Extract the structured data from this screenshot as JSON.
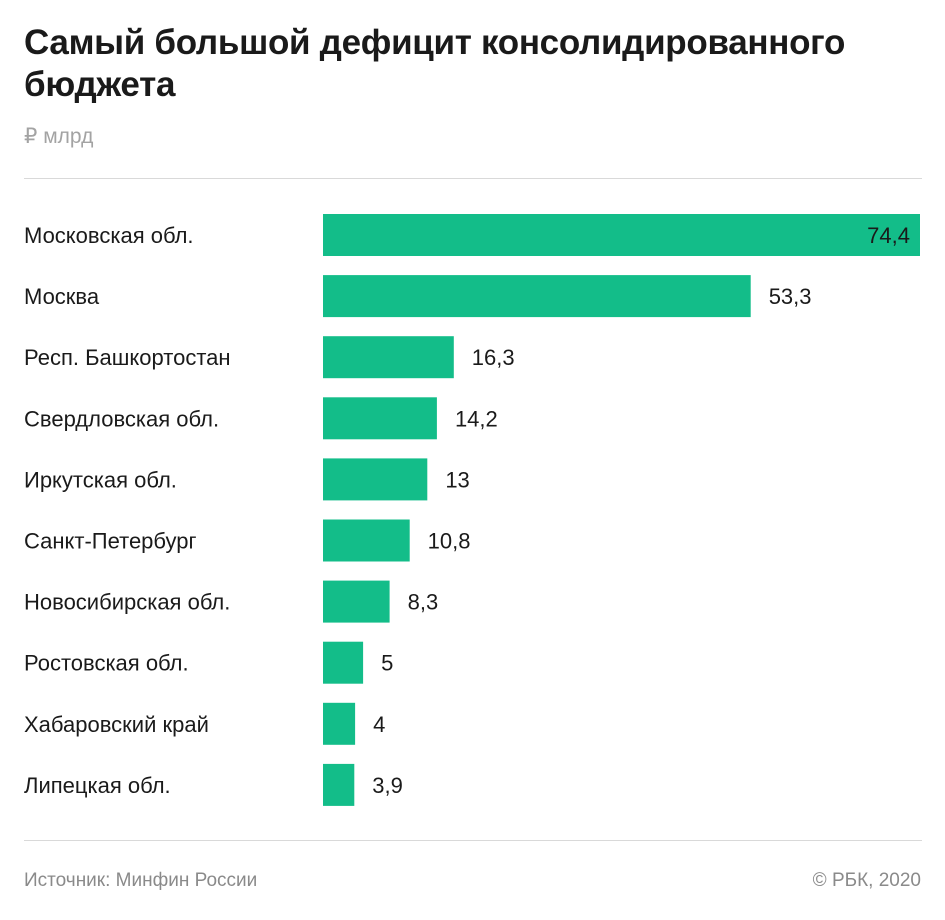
{
  "title": "Самый большой дефицит консолидированного бюджета",
  "unit": "₽ млрд",
  "source": "Источник: Минфин России",
  "credit": "© РБК, 2020",
  "colors": {
    "bar": "#13bd89",
    "text": "#1a1a1a",
    "muted": "#a3a3a3",
    "rule": "#d9d9d9"
  },
  "chart_data": {
    "type": "bar",
    "orientation": "horizontal",
    "title": "Самый большой дефицит консолидированного бюджета",
    "subtitle": "₽ млрд",
    "categories": [
      "Московская обл.",
      "Москва",
      "Респ. Башкортостан",
      "Свердловская обл.",
      "Иркутская обл.",
      "Санкт-Петербург",
      "Новосибирская обл.",
      "Ростовская обл.",
      "Хабаровский край",
      "Липецкая обл."
    ],
    "values": [
      74.4,
      53.3,
      16.3,
      14.2,
      13,
      10.8,
      8.3,
      5,
      4,
      3.9
    ],
    "value_labels": [
      "74,4",
      "53,3",
      "16,3",
      "14,2",
      "13",
      "10,8",
      "8,3",
      "5",
      "4",
      "3,9"
    ],
    "xlim": [
      0,
      74.4
    ],
    "grid": false,
    "legend": "none"
  }
}
